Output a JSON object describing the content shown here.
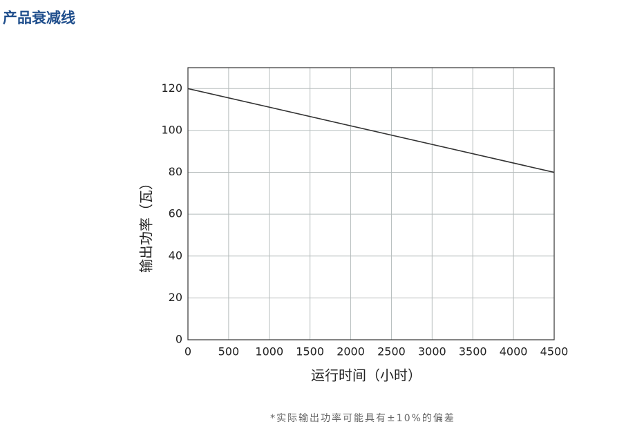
{
  "header": {
    "title": "产品衰减线"
  },
  "chart_data": {
    "type": "line",
    "x": [
      0,
      4500
    ],
    "series": [
      {
        "name": "输出功率",
        "color": "#333333",
        "values": [
          120,
          80
        ]
      }
    ],
    "xlabel": "运行时间（小时）",
    "ylabel": "输出功率（瓦）",
    "xlim": [
      0,
      4500
    ],
    "ylim": [
      0,
      130
    ],
    "xticks": [
      0,
      500,
      1000,
      1500,
      2000,
      2500,
      3000,
      3500,
      4000,
      4500
    ],
    "yticks": [
      0,
      20,
      40,
      60,
      80,
      100,
      120
    ],
    "grid": true
  },
  "footnote": "*实际输出功率可能具有±10%的偏差"
}
